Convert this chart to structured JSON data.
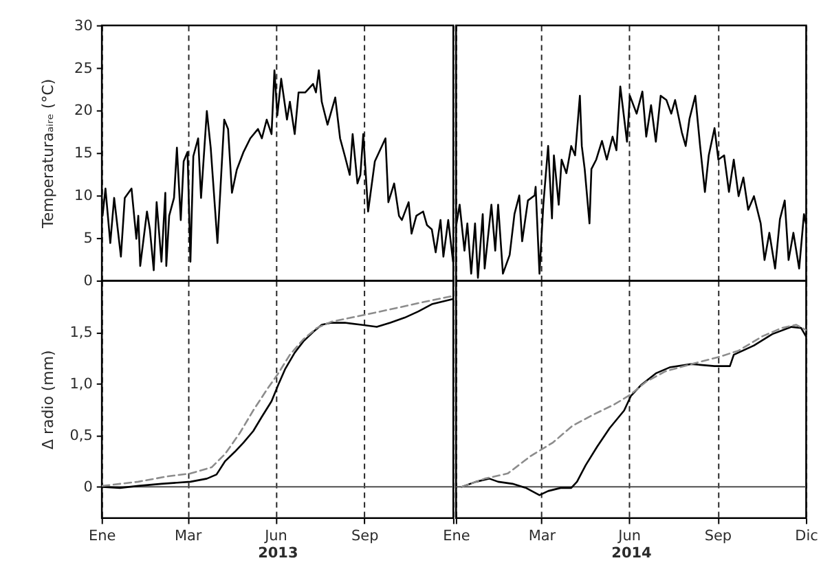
{
  "chart_data": [
    {
      "type": "line",
      "ylabel": "Temperaturaₐᵢᵣₑ (°C)",
      "xlim": [
        "2013-01-01",
        "2013-12-31"
      ],
      "xticks": [
        {
          "value": "2013-01-01",
          "label": null
        },
        {
          "value": "2013-03-31",
          "label": null
        },
        {
          "value": "2013-06-30",
          "label": null
        },
        {
          "value": "2013-09-30",
          "label": null
        },
        {
          "value": "2013-12-31",
          "label": null
        }
      ],
      "ylim": [
        0,
        30
      ],
      "yticks": [
        0,
        5,
        10,
        15,
        20,
        25,
        30
      ],
      "grid": "x",
      "tick_labels": "y",
      "series": [
        {
          "color": "#000000",
          "x": [
            "2013-01-02",
            "2013-01-05",
            "2013-01-10",
            "2013-01-14",
            "2013-01-21",
            "2013-01-25",
            "2013-02-01",
            "2013-02-06",
            "2013-02-08",
            "2013-02-10",
            "2013-02-17",
            "2013-02-20",
            "2013-02-24",
            "2013-02-27",
            "2013-03-04",
            "2013-03-08",
            "2013-03-09",
            "2013-03-12",
            "2013-03-17",
            "2013-03-20",
            "2013-03-24",
            "2013-03-27",
            "2013-03-31",
            "2013-04-03",
            "2013-04-06",
            "2013-04-11",
            "2013-04-14",
            "2013-04-20",
            "2013-04-24",
            "2013-04-26",
            "2013-05-01",
            "2013-05-08",
            "2013-05-12",
            "2013-05-16",
            "2013-05-21",
            "2013-05-28",
            "2013-06-04",
            "2013-06-12",
            "2013-06-16",
            "2013-06-21",
            "2013-06-26",
            "2013-06-29",
            "2013-07-02",
            "2013-07-06",
            "2013-07-12",
            "2013-07-15",
            "2013-07-20",
            "2013-07-24",
            "2013-07-31",
            "2013-08-08",
            "2013-08-11",
            "2013-08-14",
            "2013-08-17",
            "2013-08-23",
            "2013-08-31",
            "2013-09-05",
            "2013-09-10",
            "2013-09-15",
            "2013-09-18",
            "2013-09-23",
            "2013-09-26",
            "2013-09-29",
            "2013-10-04",
            "2013-10-11",
            "2013-10-22",
            "2013-10-25",
            "2013-10-31",
            "2013-11-05",
            "2013-11-08",
            "2013-11-15",
            "2013-11-18",
            "2013-11-23",
            "2013-11-30",
            "2013-12-04",
            "2013-12-09",
            "2013-12-13",
            "2013-12-18",
            "2013-12-21",
            "2013-12-26",
            "2013-12-31"
          ],
          "values": [
            7.6,
            10.8,
            4.4,
            9.7,
            2.8,
            9.7,
            10.8,
            4.9,
            7.6,
            1.7,
            8.1,
            6.0,
            1.2,
            9.2,
            2.2,
            10.3,
            1.7,
            7.6,
            9.7,
            15.6,
            7.1,
            14.0,
            15.1,
            2.2,
            14.6,
            16.7,
            9.7,
            19.9,
            15.6,
            12.4,
            4.4,
            18.9,
            17.8,
            10.3,
            13.0,
            15.1,
            16.7,
            17.8,
            16.7,
            18.9,
            17.2,
            24.7,
            19.4,
            23.7,
            18.9,
            21.0,
            17.2,
            22.1,
            22.1,
            23.1,
            22.1,
            24.7,
            21.0,
            18.3,
            21.5,
            16.7,
            14.6,
            12.4,
            17.2,
            11.4,
            12.4,
            17.2,
            8.1,
            14.0,
            16.7,
            9.2,
            11.4,
            7.6,
            7.1,
            9.2,
            5.5,
            7.6,
            8.1,
            6.5,
            6.0,
            3.3,
            7.1,
            2.8,
            7.1,
            2.2
          ]
        }
      ]
    },
    {
      "type": "line",
      "xlim": [
        "2014-01-01",
        "2014-12-31"
      ],
      "xticks": [
        {
          "value": "2014-01-01",
          "label": null
        },
        {
          "value": "2014-03-31",
          "label": null
        },
        {
          "value": "2014-06-30",
          "label": null
        },
        {
          "value": "2014-09-30",
          "label": null
        },
        {
          "value": "2014-12-31",
          "label": null
        }
      ],
      "ylim": [
        0,
        30
      ],
      "grid": "x",
      "tick_labels": false,
      "series": [
        {
          "color": "#000000",
          "x": [
            "2014-01-01",
            "2014-01-05",
            "2014-01-10",
            "2014-01-13",
            "2014-01-17",
            "2014-01-21",
            "2014-01-24",
            "2014-01-29",
            "2014-01-31",
            "2014-02-07",
            "2014-02-11",
            "2014-02-14",
            "2014-02-19",
            "2014-02-26",
            "2014-03-03",
            "2014-03-08",
            "2014-03-11",
            "2014-03-17",
            "2014-03-24",
            "2014-03-25",
            "2014-03-29",
            "2014-04-02",
            "2014-04-07",
            "2014-04-11",
            "2014-04-13",
            "2014-04-18",
            "2014-04-21",
            "2014-04-26",
            "2014-05-01",
            "2014-05-05",
            "2014-05-10",
            "2014-05-12",
            "2014-05-15",
            "2014-05-20",
            "2014-05-22",
            "2014-05-27",
            "2014-06-02",
            "2014-06-07",
            "2014-06-13",
            "2014-06-17",
            "2014-06-21",
            "2014-06-25",
            "2014-06-28",
            "2014-07-01",
            "2014-07-08",
            "2014-07-14",
            "2014-07-18",
            "2014-07-23",
            "2014-07-28",
            "2014-08-02",
            "2014-08-08",
            "2014-08-13",
            "2014-08-17",
            "2014-08-24",
            "2014-08-28",
            "2014-09-01",
            "2014-09-07",
            "2014-09-12",
            "2014-09-17",
            "2014-09-21",
            "2014-09-27",
            "2014-10-01",
            "2014-10-07",
            "2014-10-12",
            "2014-10-17",
            "2014-10-22",
            "2014-10-27",
            "2014-11-01",
            "2014-11-07",
            "2014-11-14",
            "2014-11-18",
            "2014-11-23",
            "2014-11-29",
            "2014-12-04",
            "2014-12-09",
            "2014-12-13",
            "2014-12-18",
            "2014-12-24",
            "2014-12-29",
            "2014-12-31"
          ],
          "values": [
            6.2,
            8.9,
            3.5,
            6.7,
            0.8,
            6.7,
            0.3,
            7.8,
            1.4,
            8.9,
            3.5,
            8.9,
            0.8,
            3.0,
            7.8,
            10.0,
            4.6,
            9.4,
            10.0,
            11.0,
            0.8,
            8.9,
            15.8,
            7.3,
            14.7,
            8.9,
            14.2,
            12.6,
            15.8,
            14.7,
            21.7,
            15.8,
            13.1,
            6.7,
            13.1,
            14.2,
            16.4,
            14.2,
            16.9,
            15.3,
            22.8,
            19.1,
            16.3,
            21.7,
            19.6,
            22.2,
            16.9,
            20.6,
            16.3,
            21.7,
            21.2,
            19.6,
            21.2,
            17.4,
            15.8,
            19.0,
            21.7,
            15.8,
            10.4,
            14.7,
            17.9,
            14.2,
            14.7,
            10.4,
            14.2,
            9.9,
            12.1,
            8.3,
            9.9,
            6.7,
            2.4,
            5.6,
            1.4,
            7.2,
            9.4,
            2.4,
            5.6,
            1.4,
            7.8,
            6.7
          ]
        }
      ]
    },
    {
      "type": "line",
      "ylabel": "Δ radio (mm)",
      "xlabel": "2013",
      "xlim": [
        "2013-01-01",
        "2013-12-31"
      ],
      "xticks": [
        {
          "value": "2013-01-01",
          "label": "Ene"
        },
        {
          "value": "2013-03-31",
          "label": "Mar"
        },
        {
          "value": "2013-06-30",
          "label": "Jun"
        },
        {
          "value": "2013-09-30",
          "label": "Sep"
        },
        {
          "value": "2013-12-31",
          "label": null
        }
      ],
      "ylim": [
        -0.3,
        2.0
      ],
      "yticks": [
        0,
        {
          "value": 0.5,
          "label": "0,5"
        },
        {
          "value": 1,
          "label": "1,0"
        },
        {
          "value": 1.5,
          "label": "1,5"
        }
      ],
      "grid": "x",
      "ref_lines": [
        {
          "axis": "y",
          "value": 0,
          "color": "#4d4d4d"
        }
      ],
      "series": [
        {
          "color": "#000000",
          "x": [
            "2013-01-02",
            "2013-01-20",
            "2013-02-08",
            "2013-03-04",
            "2013-04-03",
            "2013-04-20",
            "2013-04-30",
            "2013-05-09",
            "2013-05-19",
            "2013-05-28",
            "2013-06-07",
            "2013-06-16",
            "2013-06-26",
            "2013-07-03",
            "2013-07-10",
            "2013-07-20",
            "2013-07-29",
            "2013-08-08",
            "2013-08-17",
            "2013-08-27",
            "2013-09-10",
            "2013-09-27",
            "2013-10-13",
            "2013-10-27",
            "2013-11-11",
            "2013-11-25",
            "2013-12-09",
            "2013-12-31"
          ],
          "values": [
            0.0,
            -0.01,
            0.01,
            0.03,
            0.05,
            0.08,
            0.12,
            0.25,
            0.34,
            0.43,
            0.54,
            0.68,
            0.83,
            0.99,
            1.14,
            1.3,
            1.41,
            1.5,
            1.57,
            1.59,
            1.59,
            1.57,
            1.55,
            1.59,
            1.64,
            1.7,
            1.77,
            1.82
          ]
        },
        {
          "color": "#8c8c8c",
          "line_style": "dashed",
          "x": [
            "2013-01-02",
            "2013-02-08",
            "2013-03-09",
            "2013-04-03",
            "2013-04-25",
            "2013-05-09",
            "2013-05-24",
            "2013-06-07",
            "2013-06-21",
            "2013-07-03",
            "2013-07-15",
            "2013-07-29",
            "2013-08-12",
            "2013-08-27",
            "2013-09-27",
            "2013-10-27",
            "2013-11-30",
            "2013-12-31"
          ],
          "values": [
            0.01,
            0.05,
            0.1,
            0.13,
            0.19,
            0.32,
            0.52,
            0.74,
            0.94,
            1.1,
            1.28,
            1.43,
            1.54,
            1.6,
            1.66,
            1.72,
            1.79,
            1.85
          ]
        }
      ]
    },
    {
      "type": "line",
      "xlabel": "2014",
      "xlim": [
        "2014-01-01",
        "2014-12-31"
      ],
      "xticks": [
        {
          "value": "2014-01-01",
          "label": "Ene"
        },
        {
          "value": "2014-03-31",
          "label": "Mar"
        },
        {
          "value": "2014-06-30",
          "label": "Jun"
        },
        {
          "value": "2014-09-30",
          "label": "Sep"
        },
        {
          "value": "2014-12-31",
          "label": "Dic"
        }
      ],
      "ylim": [
        -0.3,
        2.0
      ],
      "grid": "x",
      "tick_labels": "x",
      "ref_lines": [
        {
          "axis": "y",
          "value": 0,
          "color": "#4d4d4d"
        }
      ],
      "series": [
        {
          "color": "#000000",
          "x": [
            "2014-01-07",
            "2014-01-22",
            "2014-02-05",
            "2014-02-14",
            "2014-03-01",
            "2014-03-15",
            "2014-03-29",
            "2014-04-07",
            "2014-04-20",
            "2014-05-01",
            "2014-05-07",
            "2014-05-16",
            "2014-05-28",
            "2014-06-10",
            "2014-06-25",
            "2014-07-02",
            "2014-07-13",
            "2014-07-28",
            "2014-08-12",
            "2014-09-03",
            "2014-09-27",
            "2014-10-13",
            "2014-10-17",
            "2014-11-07",
            "2014-11-26",
            "2014-12-16",
            "2014-12-26",
            "2014-12-31"
          ],
          "values": [
            0.0,
            0.05,
            0.08,
            0.05,
            0.03,
            -0.01,
            -0.08,
            -0.04,
            -0.01,
            -0.01,
            0.05,
            0.21,
            0.39,
            0.57,
            0.74,
            0.88,
            0.99,
            1.1,
            1.16,
            1.19,
            1.17,
            1.17,
            1.28,
            1.37,
            1.48,
            1.55,
            1.54,
            1.46
          ]
        },
        {
          "color": "#8c8c8c",
          "line_style": "dashed",
          "x": [
            "2014-01-07",
            "2014-01-31",
            "2014-02-24",
            "2014-03-20",
            "2014-04-12",
            "2014-05-02",
            "2014-05-24",
            "2014-06-15",
            "2014-07-01",
            "2014-07-18",
            "2014-08-07",
            "2014-09-07",
            "2014-10-02",
            "2014-10-22",
            "2014-11-16",
            "2014-12-06",
            "2014-12-21",
            "2014-12-31"
          ],
          "values": [
            0.0,
            0.08,
            0.13,
            0.3,
            0.43,
            0.59,
            0.7,
            0.8,
            0.89,
            1.02,
            1.12,
            1.2,
            1.26,
            1.32,
            1.46,
            1.54,
            1.57,
            1.52
          ]
        }
      ]
    }
  ]
}
